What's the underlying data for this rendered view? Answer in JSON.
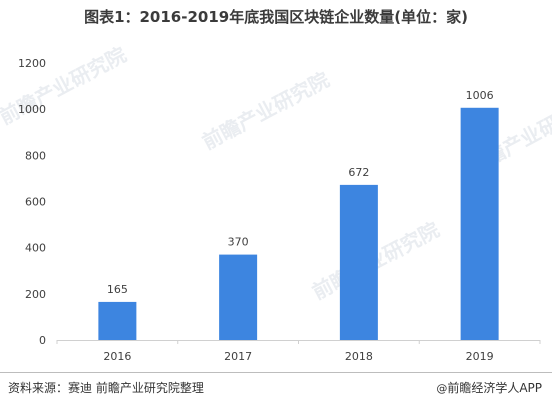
{
  "chart_data": {
    "type": "bar",
    "title": "图表1：2016-2019年底我国区块链企业数量(单位：家)",
    "categories": [
      "2016",
      "2017",
      "2018",
      "2019"
    ],
    "values": [
      165,
      370,
      672,
      1006
    ],
    "data_labels": [
      "165",
      "370",
      "672",
      "1006"
    ],
    "y_ticks": [
      "0",
      "200",
      "400",
      "600",
      "800",
      "1000",
      "1200"
    ],
    "ylim": [
      0,
      1200
    ],
    "grid": false,
    "legend": "none",
    "bar_color": "#3d85e0"
  },
  "watermark": {
    "text": "前瞻产业研究院"
  },
  "footer": {
    "source": "资料来源：赛迪  前瞻产业研究院整理",
    "credit_symbol": "@",
    "credit": "前瞻经济学人APP"
  }
}
